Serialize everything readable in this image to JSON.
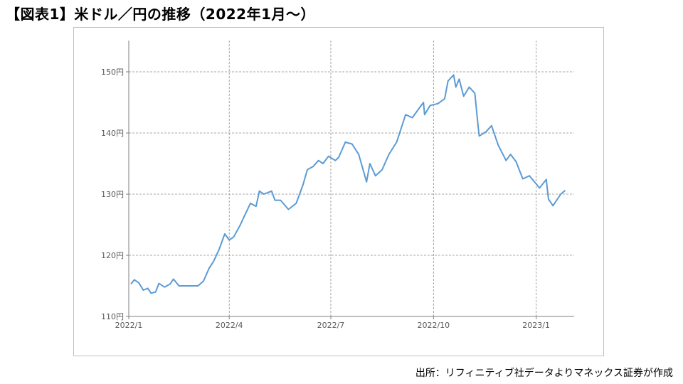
{
  "page_title": "【図表1】米ドル／円の推移（2022年1月～）",
  "source_note": "出所：リフィニティブ社データよりマネックス証券が作成",
  "chart_data": {
    "type": "line",
    "title": "",
    "xlabel": "",
    "ylabel": "",
    "ylim": [
      110,
      150
    ],
    "yticks": [
      110,
      120,
      130,
      140,
      150
    ],
    "ytick_labels": [
      "110円",
      "120円",
      "130円",
      "140円",
      "150円"
    ],
    "xticks": [
      "2022-01-01",
      "2022-04-01",
      "2022-07-01",
      "2022-10-01",
      "2023-01-01"
    ],
    "xtick_labels": [
      "2022/1",
      "2022/4",
      "2022/7",
      "2022/10",
      "2023/1"
    ],
    "grid": true,
    "line_color": "#5b9bd5",
    "series": [
      {
        "x": [
          "2022-01-03",
          "2022-01-06",
          "2022-01-10",
          "2022-01-14",
          "2022-01-18",
          "2022-01-21",
          "2022-01-25",
          "2022-01-28",
          "2022-02-02",
          "2022-02-07",
          "2022-02-10",
          "2022-02-15",
          "2022-02-18",
          "2022-02-23",
          "2022-02-28",
          "2022-03-04",
          "2022-03-09",
          "2022-03-14",
          "2022-03-18",
          "2022-03-23",
          "2022-03-28",
          "2022-04-01",
          "2022-04-05",
          "2022-04-11",
          "2022-04-14",
          "2022-04-20",
          "2022-04-25",
          "2022-04-28",
          "2022-05-02",
          "2022-05-09",
          "2022-05-12",
          "2022-05-17",
          "2022-05-24",
          "2022-05-31",
          "2022-06-06",
          "2022-06-10",
          "2022-06-15",
          "2022-06-20",
          "2022-06-24",
          "2022-06-29",
          "2022-07-05",
          "2022-07-08",
          "2022-07-14",
          "2022-07-20",
          "2022-07-26",
          "2022-08-02",
          "2022-08-05",
          "2022-08-10",
          "2022-08-16",
          "2022-08-22",
          "2022-08-29",
          "2022-09-06",
          "2022-09-12",
          "2022-09-16",
          "2022-09-22",
          "2022-09-23",
          "2022-09-28",
          "2022-10-05",
          "2022-10-11",
          "2022-10-14",
          "2022-10-19",
          "2022-10-21",
          "2022-10-24",
          "2022-10-28",
          "2022-11-02",
          "2022-11-07",
          "2022-11-10",
          "2022-11-11",
          "2022-11-17",
          "2022-11-22",
          "2022-11-28",
          "2022-12-05",
          "2022-12-09",
          "2022-12-14",
          "2022-12-20",
          "2022-12-26",
          "2023-01-04",
          "2023-01-10",
          "2023-01-12",
          "2023-01-16",
          "2023-01-23",
          "2023-01-27"
        ],
        "values": [
          115.3,
          116.0,
          115.5,
          114.3,
          114.6,
          113.8,
          114.0,
          115.4,
          114.8,
          115.3,
          116.1,
          115.0,
          115.0,
          115.0,
          115.0,
          115.0,
          115.8,
          117.9,
          119.0,
          121.0,
          123.5,
          122.5,
          123.0,
          125.0,
          126.2,
          128.5,
          128.0,
          130.5,
          130.0,
          130.5,
          129.0,
          129.0,
          127.5,
          128.5,
          131.5,
          134.0,
          134.5,
          135.5,
          135.0,
          136.2,
          135.5,
          136.0,
          138.5,
          138.2,
          136.5,
          132.0,
          135.0,
          133.0,
          134.0,
          136.5,
          138.5,
          143.0,
          142.5,
          143.5,
          145.0,
          143.0,
          144.5,
          144.8,
          145.6,
          148.5,
          149.5,
          147.5,
          148.8,
          146.0,
          147.5,
          146.5,
          141.0,
          139.5,
          140.2,
          141.2,
          138.0,
          135.5,
          136.5,
          135.3,
          132.5,
          133.0,
          131.0,
          132.4,
          129.2,
          128.1,
          130.0,
          130.6
        ]
      }
    ]
  }
}
